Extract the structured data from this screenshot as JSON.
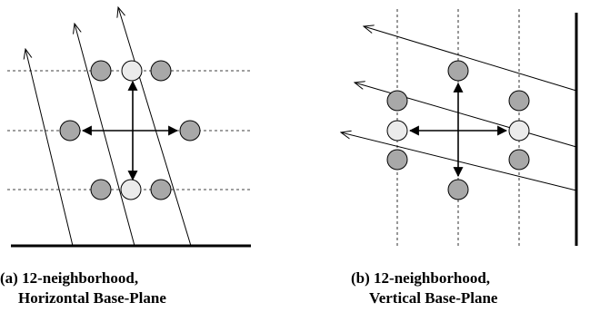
{
  "panels": [
    {
      "id": "a",
      "caption": {
        "line1": "(a) 12-neighborhood,",
        "line2": "Horizontal Base-Plane"
      }
    },
    {
      "id": "b",
      "caption": {
        "line1": "(b) 12-neighborhood,",
        "line2": "Vertical Base-Plane"
      }
    }
  ],
  "colors": {
    "node_gray": "#a8a8a8",
    "node_light": "#ebebeb",
    "stroke": "#000000"
  }
}
